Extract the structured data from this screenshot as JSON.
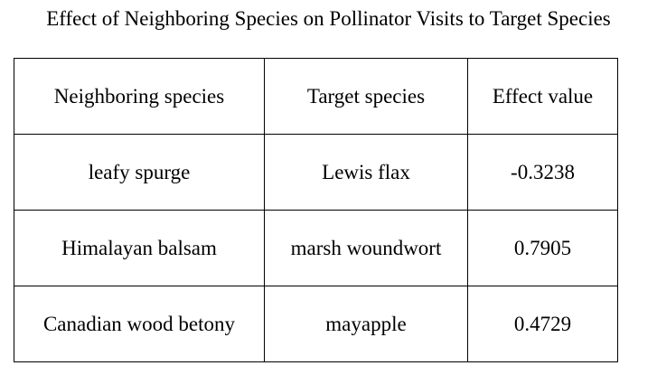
{
  "chart_data": {
    "type": "table",
    "title": "Effect of Neighboring Species on Pollinator Visits to Target Species",
    "columns": [
      "Neighboring species",
      "Target species",
      "Effect value"
    ],
    "rows": [
      [
        "leafy spurge",
        "Lewis flax",
        "-0.3238"
      ],
      [
        "Himalayan balsam",
        "marsh woundwort",
        "0.7905"
      ],
      [
        "Canadian wood betony",
        "mayapple",
        "0.4729"
      ]
    ]
  }
}
